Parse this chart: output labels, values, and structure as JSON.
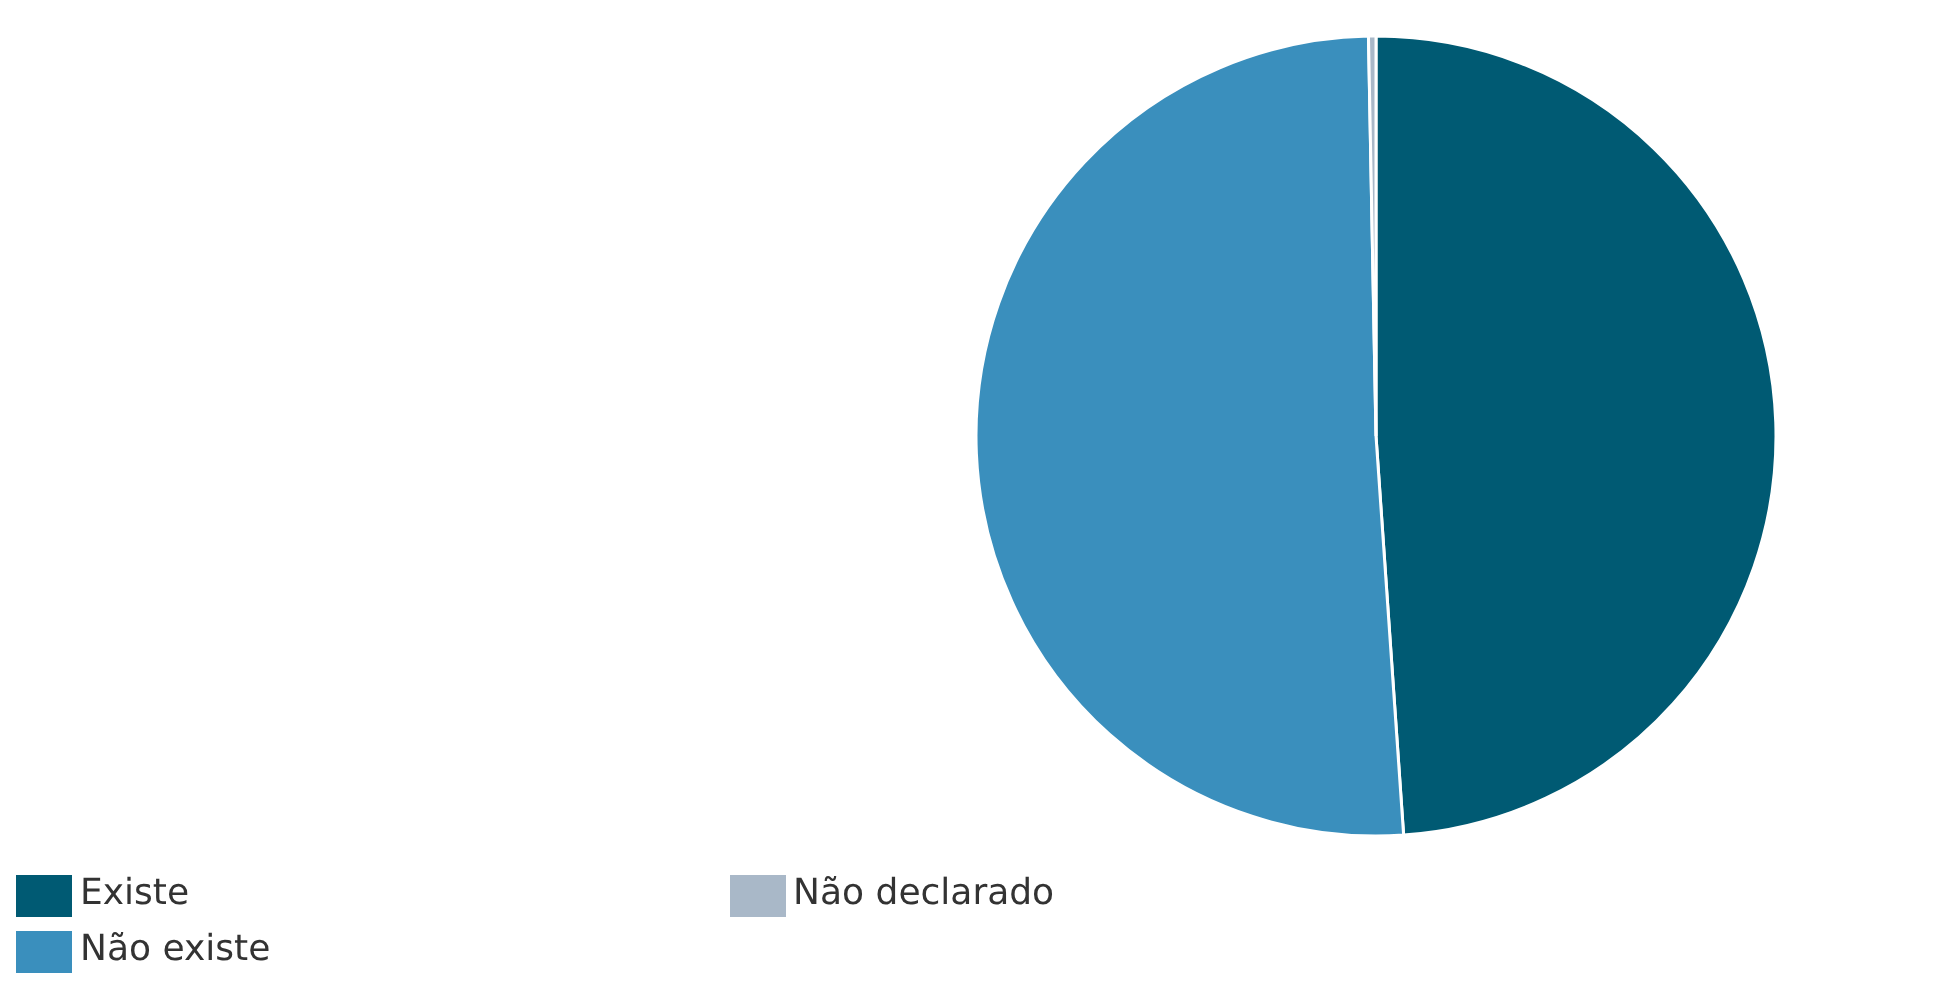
{
  "chart_data": {
    "type": "pie",
    "categories": [
      "Existe",
      "Não existe",
      "Não declarado"
    ],
    "values": [
      48.9,
      50.8,
      0.3
    ],
    "colors": [
      "#005a73",
      "#3a8fbd",
      "#a9b8c8"
    ],
    "legend": "bottom"
  }
}
